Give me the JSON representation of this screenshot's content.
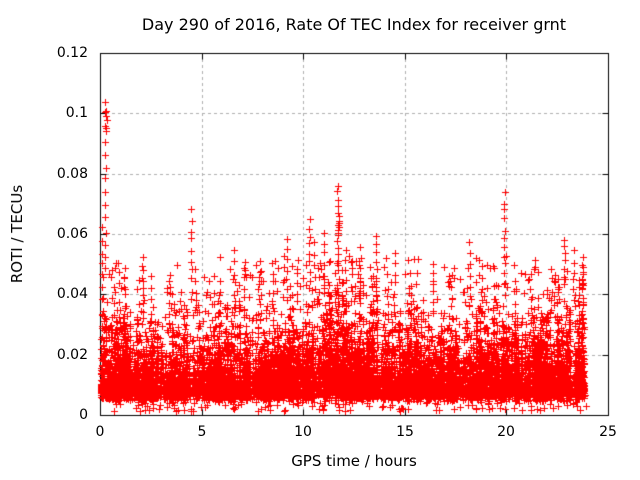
{
  "figure": {
    "background": "#ffffff"
  },
  "chart_data": {
    "type": "scatter",
    "title": "Day 290 of 2016, Rate Of TEC Index for receiver grnt",
    "xlabel": "GPS time / hours",
    "ylabel": "ROTI / TECUs",
    "xlim": [
      0,
      25
    ],
    "ylim": [
      0,
      0.12
    ],
    "xticks": [
      0,
      5,
      10,
      15,
      20,
      25
    ],
    "xtick_labels": [
      "0",
      "5",
      "10",
      "15",
      "20",
      "25"
    ],
    "yticks": [
      0,
      0.02,
      0.04,
      0.06,
      0.08,
      0.1,
      0.12
    ],
    "ytick_labels": [
      "0",
      "0.02",
      "0.04",
      "0.06",
      "0.08",
      "0.1",
      "0.12"
    ],
    "grid": true,
    "legend_position": "none",
    "marker": "plus",
    "marker_color": "#ff0000",
    "grid_color": "#b0b0b0",
    "axis_color": "#000000",
    "x_data_range": [
      0.02,
      23.9
    ],
    "baseline_distribution": {
      "seed": 290,
      "x_range": [
        0.02,
        23.9
      ],
      "strands": 1150,
      "strand_points_min": 4,
      "strand_points_max": 14,
      "y_floor": 0.0045,
      "exp_mean": 0.008,
      "y_cap": 0.053,
      "low_scatter_points": 130,
      "low_scatter_y": [
        0.0012,
        0.0045
      ],
      "envelope": [
        [
          0,
          1.05
        ],
        [
          1,
          0.95
        ],
        [
          3,
          0.92
        ],
        [
          5,
          0.9
        ],
        [
          7,
          0.95
        ],
        [
          8.5,
          1.1
        ],
        [
          10,
          1.25
        ],
        [
          11.5,
          1.32
        ],
        [
          13,
          1.25
        ],
        [
          14.5,
          1.12
        ],
        [
          16,
          1.0
        ],
        [
          17.5,
          0.95
        ],
        [
          19,
          1.0
        ],
        [
          20.5,
          1.02
        ],
        [
          22,
          1.08
        ],
        [
          23,
          1.15
        ],
        [
          23.9,
          1.18
        ]
      ]
    },
    "spikes": [
      {
        "x": 0.25,
        "y_min": 0.048,
        "y_max": 0.104,
        "n": 14
      },
      {
        "x": 0.3,
        "y_min": 0.094,
        "y_max": 0.101,
        "n": 5
      },
      {
        "x": 0.1,
        "y_min": 0.03,
        "y_max": 0.062,
        "n": 9
      },
      {
        "x": 1.2,
        "y_min": 0.033,
        "y_max": 0.049,
        "n": 6
      },
      {
        "x": 2.1,
        "y_min": 0.034,
        "y_max": 0.053,
        "n": 8
      },
      {
        "x": 2.5,
        "y_min": 0.03,
        "y_max": 0.046,
        "n": 5
      },
      {
        "x": 3.4,
        "y_min": 0.03,
        "y_max": 0.044,
        "n": 5
      },
      {
        "x": 4.5,
        "y_min": 0.038,
        "y_max": 0.068,
        "n": 10
      },
      {
        "x": 4.7,
        "y_min": 0.034,
        "y_max": 0.048,
        "n": 5
      },
      {
        "x": 5.9,
        "y_min": 0.03,
        "y_max": 0.044,
        "n": 5
      },
      {
        "x": 6.6,
        "y_min": 0.033,
        "y_max": 0.054,
        "n": 7
      },
      {
        "x": 7.1,
        "y_min": 0.032,
        "y_max": 0.049,
        "n": 6
      },
      {
        "x": 7.9,
        "y_min": 0.033,
        "y_max": 0.051,
        "n": 6
      },
      {
        "x": 8.5,
        "y_min": 0.035,
        "y_max": 0.05,
        "n": 6
      },
      {
        "x": 9.2,
        "y_min": 0.038,
        "y_max": 0.058,
        "n": 7
      },
      {
        "x": 9.7,
        "y_min": 0.038,
        "y_max": 0.052,
        "n": 6
      },
      {
        "x": 10.3,
        "y_min": 0.042,
        "y_max": 0.065,
        "n": 9
      },
      {
        "x": 10.55,
        "y_min": 0.038,
        "y_max": 0.057,
        "n": 6
      },
      {
        "x": 11.05,
        "y_min": 0.04,
        "y_max": 0.06,
        "n": 7
      },
      {
        "x": 11.7,
        "y_min": 0.048,
        "y_max": 0.0765,
        "n": 12
      },
      {
        "x": 11.75,
        "y_min": 0.06,
        "y_max": 0.066,
        "n": 6
      },
      {
        "x": 12.1,
        "y_min": 0.038,
        "y_max": 0.055,
        "n": 6
      },
      {
        "x": 12.8,
        "y_min": 0.038,
        "y_max": 0.055,
        "n": 6
      },
      {
        "x": 13.6,
        "y_min": 0.04,
        "y_max": 0.059,
        "n": 8
      },
      {
        "x": 14.5,
        "y_min": 0.036,
        "y_max": 0.054,
        "n": 6
      },
      {
        "x": 15.3,
        "y_min": 0.033,
        "y_max": 0.047,
        "n": 5
      },
      {
        "x": 16.4,
        "y_min": 0.034,
        "y_max": 0.05,
        "n": 6
      },
      {
        "x": 17.3,
        "y_min": 0.032,
        "y_max": 0.046,
        "n": 5
      },
      {
        "x": 18.2,
        "y_min": 0.036,
        "y_max": 0.057,
        "n": 7
      },
      {
        "x": 18.8,
        "y_min": 0.034,
        "y_max": 0.049,
        "n": 5
      },
      {
        "x": 19.9,
        "y_min": 0.044,
        "y_max": 0.0735,
        "n": 11
      },
      {
        "x": 20.4,
        "y_min": 0.033,
        "y_max": 0.049,
        "n": 5
      },
      {
        "x": 21.2,
        "y_min": 0.032,
        "y_max": 0.046,
        "n": 5
      },
      {
        "x": 22.2,
        "y_min": 0.034,
        "y_max": 0.049,
        "n": 5
      },
      {
        "x": 22.85,
        "y_min": 0.044,
        "y_max": 0.0585,
        "n": 7
      },
      {
        "x": 23.3,
        "y_min": 0.038,
        "y_max": 0.054,
        "n": 6
      },
      {
        "x": 23.75,
        "y_min": 0.02,
        "y_max": 0.05,
        "n": 18
      },
      {
        "x": 23.55,
        "y_min": 0.015,
        "y_max": 0.045,
        "n": 14
      }
    ]
  }
}
